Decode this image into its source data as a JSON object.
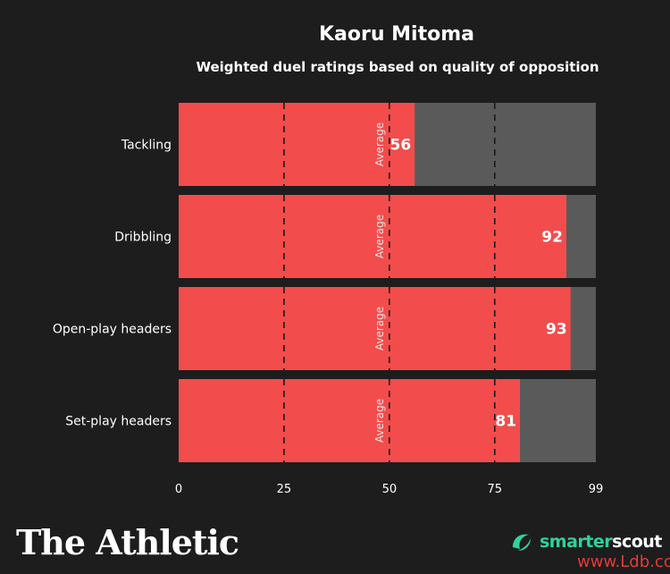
{
  "title": "Kaoru Mitoma",
  "subtitle": "Weighted duel ratings based on quality of opposition",
  "brand": "The Athletic",
  "partner": {
    "part1": "smarter",
    "part2": "scout"
  },
  "watermark": "www.Ldb.cc",
  "colors": {
    "background": "#1d1d1d",
    "bar_fill": "#f24c4c",
    "bar_track": "#5a5a5a",
    "text": "#ffffff",
    "average_label": "#e7e7e7",
    "partner_green": "#2fd39a"
  },
  "chart_data": {
    "type": "bar",
    "orientation": "horizontal",
    "title": "Kaoru Mitoma",
    "subtitle": "Weighted duel ratings based on quality of opposition",
    "categories": [
      "Tackling",
      "Dribbling",
      "Open-play headers",
      "Set-play headers"
    ],
    "values": [
      56,
      92,
      93,
      81
    ],
    "xlim": [
      0,
      99
    ],
    "xticks": [
      0,
      25,
      50,
      75,
      99
    ],
    "reference_lines": [
      25,
      50,
      75
    ],
    "average_label": "Average",
    "average_value": 50,
    "grid": false,
    "legend": "none"
  }
}
